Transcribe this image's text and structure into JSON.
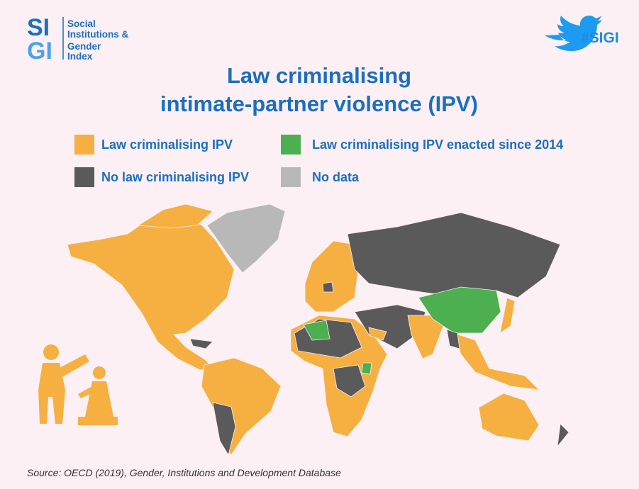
{
  "logo": {
    "mark_top": "SI",
    "mark_bottom": "GI",
    "name_lines": [
      "Social",
      "Institutions &",
      "Gender",
      "Index"
    ]
  },
  "header": {
    "hashtag": "#SIGI",
    "title_lines": [
      "Law criminalising",
      "intimate-partner violence (IPV)"
    ]
  },
  "legend": {
    "items": [
      {
        "label": "Law criminalising IPV",
        "color": "#f5b041"
      },
      {
        "label": "Law criminalising IPV enacted since 2014",
        "color": "#4caf50"
      },
      {
        "label": "No law criminalising IPV",
        "color": "#5a5a5a"
      },
      {
        "label": "No data",
        "color": "#b8b8b8"
      }
    ]
  },
  "footer": {
    "source": "Source: OECD (2019), Gender, Institutions and Development Database"
  }
}
